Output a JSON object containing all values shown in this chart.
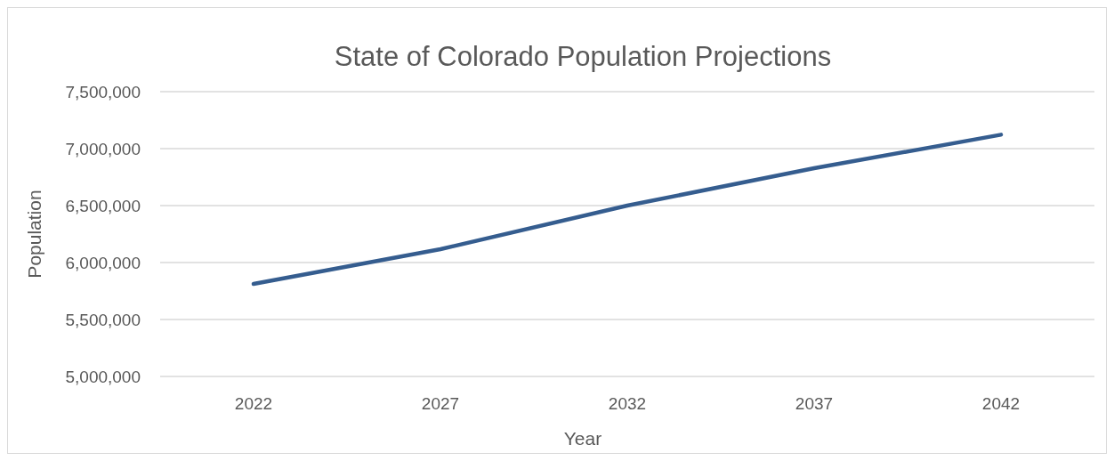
{
  "chart_data": {
    "type": "line",
    "title": "State of Colorado Population Projections",
    "xlabel": "Year",
    "ylabel": "Population",
    "categories": [
      "2022",
      "2027",
      "2032",
      "2037",
      "2042"
    ],
    "series": [
      {
        "color": "#355d8f",
        "values": [
          5812000,
          6117000,
          6500000,
          6828000,
          7122000
        ]
      }
    ],
    "ylim": [
      5000000,
      7500000
    ],
    "yticks": [
      {
        "value": 5000000,
        "label": "5,000,000"
      },
      {
        "value": 5500000,
        "label": "5,500,000"
      },
      {
        "value": 6000000,
        "label": "6,000,000"
      },
      {
        "value": 6500000,
        "label": "6,500,000"
      },
      {
        "value": 7000000,
        "label": "7,000,000"
      },
      {
        "value": 7500000,
        "label": "7,500,000"
      }
    ],
    "grid": "y",
    "marker": "none",
    "line_style": "solid"
  }
}
